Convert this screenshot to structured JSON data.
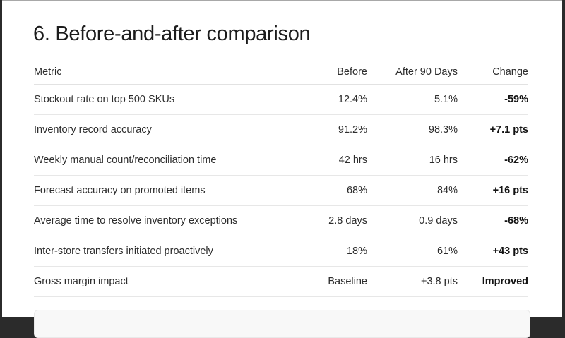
{
  "page": {
    "title": "6. Before-and-after comparison"
  },
  "table": {
    "columns": [
      "Metric",
      "Before",
      "After 90 Days",
      "Change"
    ],
    "rows": [
      {
        "metric": "Stockout rate on top 500 SKUs",
        "before": "12.4%",
        "after": "5.1%",
        "change": "-59%"
      },
      {
        "metric": "Inventory record accuracy",
        "before": "91.2%",
        "after": "98.3%",
        "change": "+7.1 pts"
      },
      {
        "metric": "Weekly manual count/reconciliation time",
        "before": "42 hrs",
        "after": "16 hrs",
        "change": "-62%"
      },
      {
        "metric": "Forecast accuracy on promoted items",
        "before": "68%",
        "after": "84%",
        "change": "+16 pts"
      },
      {
        "metric": "Average time to resolve inventory exceptions",
        "before": "2.8 days",
        "after": "0.9 days",
        "change": "-68%"
      },
      {
        "metric": "Inter-store transfers initiated proactively",
        "before": "18%",
        "after": "61%",
        "change": "+43 pts"
      },
      {
        "metric": "Gross margin impact",
        "before": "Baseline",
        "after": "+3.8 pts",
        "change": "Improved"
      }
    ]
  }
}
